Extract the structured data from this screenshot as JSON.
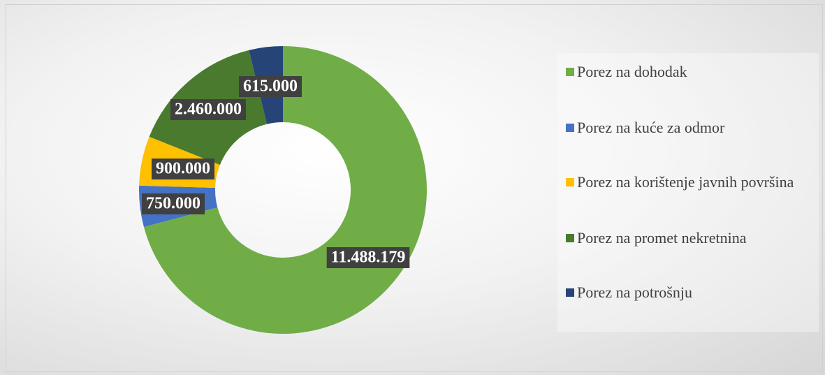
{
  "chart_data": {
    "type": "donut",
    "categories": [
      "Porez na dohodak",
      "Porez na kuće za odmor",
      "Porez na korištenje javnih površina",
      "Porez na promet nekretnina",
      "Porez na potrošnju"
    ],
    "values": [
      11488179,
      750000,
      900000,
      2460000,
      615000
    ],
    "value_labels": [
      "11.488.179",
      "750.000",
      "900.000",
      "2.460.000",
      "615.000"
    ],
    "colors": [
      "#70ad47",
      "#4472c4",
      "#ffc000",
      "#4a7a2e",
      "#264478"
    ],
    "legend": "right"
  }
}
